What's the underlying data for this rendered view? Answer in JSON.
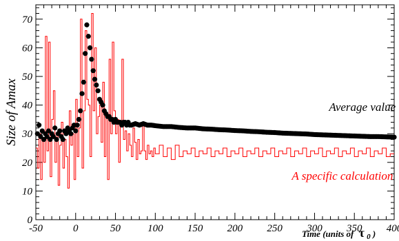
{
  "chart_data": {
    "type": "line",
    "title": "",
    "xlabel": "Time (units of",
    "xlabel_symbol": "τ",
    "xlabel_subscript": "0",
    "xlabel_close": ")",
    "ylabel": "Size of Amax",
    "xlim": [
      -50,
      400
    ],
    "ylim": [
      0,
      75
    ],
    "x_ticks": [
      -50,
      0,
      50,
      100,
      150,
      200,
      250,
      300,
      350,
      400
    ],
    "y_ticks": [
      0,
      10,
      20,
      30,
      40,
      50,
      60,
      70
    ],
    "grid": false,
    "annotations": [
      {
        "text": "Average value",
        "color": "#000000",
        "x": 360,
        "y": 38
      },
      {
        "text": "A specific calculation",
        "color": "#ff0000",
        "x": 335,
        "y": 14
      }
    ],
    "series": [
      {
        "name": "Average value",
        "kind": "scatter",
        "color": "#000000",
        "points": [
          [
            -48,
            30
          ],
          [
            -46,
            33
          ],
          [
            -44,
            29
          ],
          [
            -42,
            31
          ],
          [
            -40,
            28
          ],
          [
            -38,
            30
          ],
          [
            -36,
            29
          ],
          [
            -34,
            31
          ],
          [
            -32,
            28
          ],
          [
            -30,
            30
          ],
          [
            -28,
            29
          ],
          [
            -26,
            32
          ],
          [
            -24,
            28
          ],
          [
            -22,
            30
          ],
          [
            -20,
            31
          ],
          [
            -18,
            29
          ],
          [
            -16,
            28
          ],
          [
            -14,
            31
          ],
          [
            -12,
            30
          ],
          [
            -10,
            32
          ],
          [
            -8,
            31
          ],
          [
            -6,
            30
          ],
          [
            -4,
            32
          ],
          [
            -2,
            33
          ],
          [
            0,
            31
          ],
          [
            2,
            33
          ],
          [
            4,
            35
          ],
          [
            6,
            38
          ],
          [
            8,
            44
          ],
          [
            10,
            48
          ],
          [
            12,
            58
          ],
          [
            14,
            68
          ],
          [
            16,
            64
          ],
          [
            18,
            60
          ],
          [
            20,
            56
          ],
          [
            22,
            52
          ],
          [
            24,
            49
          ],
          [
            26,
            47
          ],
          [
            28,
            45
          ],
          [
            30,
            42
          ],
          [
            32,
            41
          ],
          [
            34,
            40
          ],
          [
            36,
            38
          ],
          [
            38,
            37
          ],
          [
            40,
            36
          ],
          [
            42,
            36
          ],
          [
            44,
            35
          ],
          [
            46,
            35
          ],
          [
            48,
            34
          ],
          [
            50,
            35
          ],
          [
            52,
            34
          ],
          [
            54,
            34
          ],
          [
            56,
            34
          ],
          [
            58,
            33
          ],
          [
            60,
            34
          ],
          [
            62,
            34
          ],
          [
            64,
            33
          ],
          [
            66,
            34
          ],
          [
            68,
            33
          ],
          [
            70,
            33
          ],
          [
            75,
            33.5
          ],
          [
            80,
            33
          ],
          [
            85,
            33.5
          ],
          [
            90,
            33
          ],
          [
            95,
            33
          ],
          [
            100,
            32.8
          ],
          [
            110,
            32.5
          ],
          [
            120,
            32.5
          ],
          [
            130,
            32.2
          ],
          [
            140,
            32
          ],
          [
            150,
            32
          ],
          [
            160,
            31.7
          ],
          [
            170,
            31.6
          ],
          [
            180,
            31.4
          ],
          [
            190,
            31.3
          ],
          [
            200,
            31.1
          ],
          [
            210,
            31
          ],
          [
            220,
            30.8
          ],
          [
            230,
            30.7
          ],
          [
            240,
            30.5
          ],
          [
            250,
            30.4
          ],
          [
            260,
            30.2
          ],
          [
            270,
            30.1
          ],
          [
            280,
            30
          ],
          [
            290,
            29.9
          ],
          [
            300,
            29.7
          ],
          [
            310,
            29.6
          ],
          [
            320,
            29.5
          ],
          [
            330,
            29.4
          ],
          [
            340,
            29.3
          ],
          [
            350,
            29.2
          ],
          [
            360,
            29.1
          ],
          [
            370,
            29
          ],
          [
            380,
            29
          ],
          [
            390,
            28.9
          ],
          [
            400,
            28.8
          ]
        ]
      },
      {
        "name": "A specific calculation",
        "kind": "step",
        "color": "#ff0000",
        "points": [
          [
            -50,
            25
          ],
          [
            -48,
            18
          ],
          [
            -46,
            30
          ],
          [
            -44,
            14
          ],
          [
            -42,
            28
          ],
          [
            -40,
            20
          ],
          [
            -38,
            64
          ],
          [
            -36,
            24
          ],
          [
            -34,
            62
          ],
          [
            -32,
            15
          ],
          [
            -30,
            35
          ],
          [
            -28,
            45
          ],
          [
            -26,
            20
          ],
          [
            -24,
            30
          ],
          [
            -22,
            12
          ],
          [
            -20,
            26
          ],
          [
            -18,
            34
          ],
          [
            -16,
            18
          ],
          [
            -14,
            28
          ],
          [
            -12,
            22
          ],
          [
            -10,
            11
          ],
          [
            -8,
            38
          ],
          [
            -6,
            26
          ],
          [
            -4,
            30
          ],
          [
            -2,
            14
          ],
          [
            0,
            42
          ],
          [
            2,
            22
          ],
          [
            4,
            32
          ],
          [
            6,
            70
          ],
          [
            8,
            18
          ],
          [
            10,
            38
          ],
          [
            12,
            66
          ],
          [
            14,
            42
          ],
          [
            16,
            40
          ],
          [
            18,
            22
          ],
          [
            20,
            72
          ],
          [
            22,
            38
          ],
          [
            24,
            60
          ],
          [
            26,
            30
          ],
          [
            28,
            36
          ],
          [
            30,
            40
          ],
          [
            32,
            27
          ],
          [
            34,
            48
          ],
          [
            36,
            22
          ],
          [
            38,
            36
          ],
          [
            40,
            14
          ],
          [
            42,
            56
          ],
          [
            44,
            30
          ],
          [
            46,
            62
          ],
          [
            48,
            38
          ],
          [
            50,
            30
          ],
          [
            52,
            35
          ],
          [
            54,
            20
          ],
          [
            56,
            33
          ],
          [
            58,
            56
          ],
          [
            60,
            28
          ],
          [
            62,
            31
          ],
          [
            64,
            24
          ],
          [
            66,
            30
          ],
          [
            68,
            26
          ],
          [
            70,
            22
          ],
          [
            72,
            32
          ],
          [
            74,
            27
          ],
          [
            76,
            21
          ],
          [
            78,
            28
          ],
          [
            80,
            23
          ],
          [
            82,
            24
          ],
          [
            84,
            33
          ],
          [
            86,
            24
          ],
          [
            88,
            21
          ],
          [
            90,
            26
          ],
          [
            92,
            23
          ],
          [
            94,
            24
          ],
          [
            96,
            22
          ],
          [
            98,
            25
          ],
          [
            100,
            23
          ],
          [
            105,
            26
          ],
          [
            110,
            22
          ],
          [
            115,
            25
          ],
          [
            120,
            21
          ],
          [
            125,
            26
          ],
          [
            130,
            22
          ],
          [
            135,
            24
          ],
          [
            140,
            23
          ],
          [
            145,
            25
          ],
          [
            150,
            22
          ],
          [
            155,
            24
          ],
          [
            160,
            23
          ],
          [
            165,
            25
          ],
          [
            170,
            22
          ],
          [
            175,
            24
          ],
          [
            180,
            23
          ],
          [
            185,
            25
          ],
          [
            190,
            22
          ],
          [
            195,
            24
          ],
          [
            200,
            23
          ],
          [
            205,
            25
          ],
          [
            210,
            22
          ],
          [
            215,
            24
          ],
          [
            220,
            23
          ],
          [
            225,
            25
          ],
          [
            230,
            22
          ],
          [
            235,
            24
          ],
          [
            240,
            23
          ],
          [
            245,
            25
          ],
          [
            250,
            22
          ],
          [
            255,
            24
          ],
          [
            260,
            23
          ],
          [
            265,
            25
          ],
          [
            270,
            22
          ],
          [
            275,
            24
          ],
          [
            280,
            23
          ],
          [
            285,
            25
          ],
          [
            290,
            22
          ],
          [
            295,
            24
          ],
          [
            300,
            23
          ],
          [
            305,
            25
          ],
          [
            310,
            22
          ],
          [
            315,
            24
          ],
          [
            320,
            23
          ],
          [
            325,
            25
          ],
          [
            330,
            22
          ],
          [
            335,
            24
          ],
          [
            340,
            23
          ],
          [
            345,
            25
          ],
          [
            350,
            22
          ],
          [
            355,
            24
          ],
          [
            360,
            23
          ],
          [
            365,
            25
          ],
          [
            370,
            22
          ],
          [
            375,
            24
          ],
          [
            380,
            23
          ],
          [
            385,
            25
          ],
          [
            390,
            22
          ],
          [
            395,
            23
          ],
          [
            400,
            23
          ]
        ]
      }
    ]
  }
}
